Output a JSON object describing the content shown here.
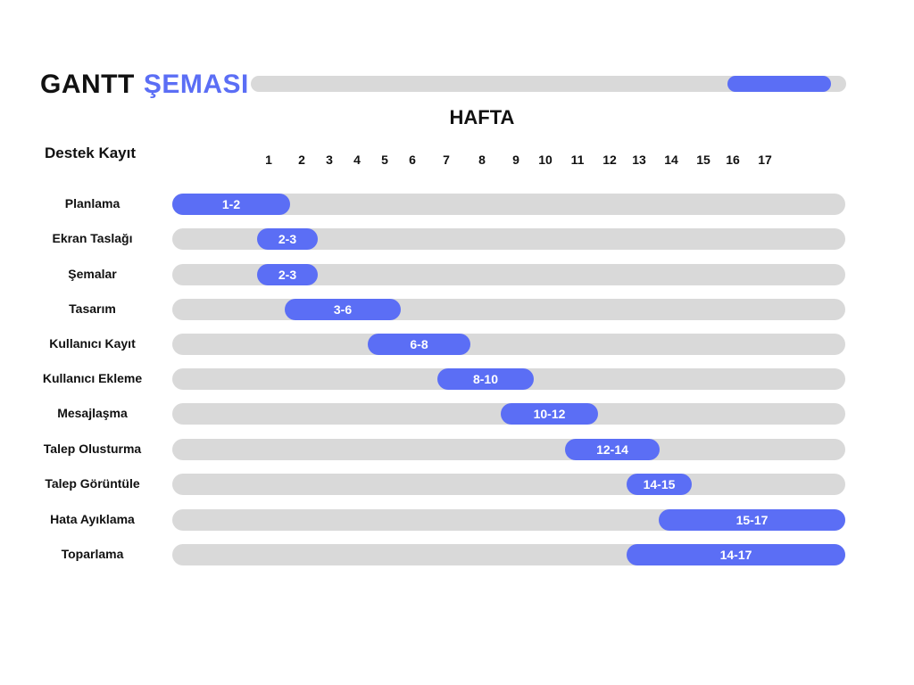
{
  "title": {
    "part1": "GANTT",
    "part2": "ŞEMASI"
  },
  "progress": {
    "start": 0.8,
    "end": 0.975
  },
  "colors": {
    "accent": "#5b6ef5",
    "track": "#d9d9d9",
    "text": "#111111"
  },
  "chart_data": {
    "type": "bar",
    "subtitle": "HAFTA",
    "category_header": "Destek Kayıt",
    "weeks": [
      "1",
      "2",
      "3",
      "4",
      "5",
      "6",
      "7",
      "8",
      "9",
      "10",
      "11",
      "12",
      "13",
      "14",
      "15",
      "16",
      "17"
    ],
    "tasks": [
      {
        "name": "Planlama",
        "label": "1-2",
        "start": 1,
        "end": 2
      },
      {
        "name": "Ekran Taslağı",
        "label": "2-3",
        "start": 2,
        "end": 3
      },
      {
        "name": "Şemalar",
        "label": "2-3",
        "start": 2,
        "end": 3
      },
      {
        "name": "Tasarım",
        "label": "3-6",
        "start": 3,
        "end": 6
      },
      {
        "name": "Kullanıcı Kayıt",
        "label": "6-8",
        "start": 6,
        "end": 8
      },
      {
        "name": "Kullanıcı Ekleme",
        "label": "8-10",
        "start": 8,
        "end": 10
      },
      {
        "name": "Mesajlaşma",
        "label": "10-12",
        "start": 10,
        "end": 12
      },
      {
        "name": "Talep Olusturma",
        "label": "12-14",
        "start": 12,
        "end": 14
      },
      {
        "name": "Talep Görüntüle",
        "label": "14-15",
        "start": 14,
        "end": 15
      },
      {
        "name": "Hata Ayıklama",
        "label": "15-17",
        "start": 15,
        "end": 17
      },
      {
        "name": "Toparlama",
        "label": "14-17",
        "start": 14,
        "end": 17
      }
    ]
  }
}
